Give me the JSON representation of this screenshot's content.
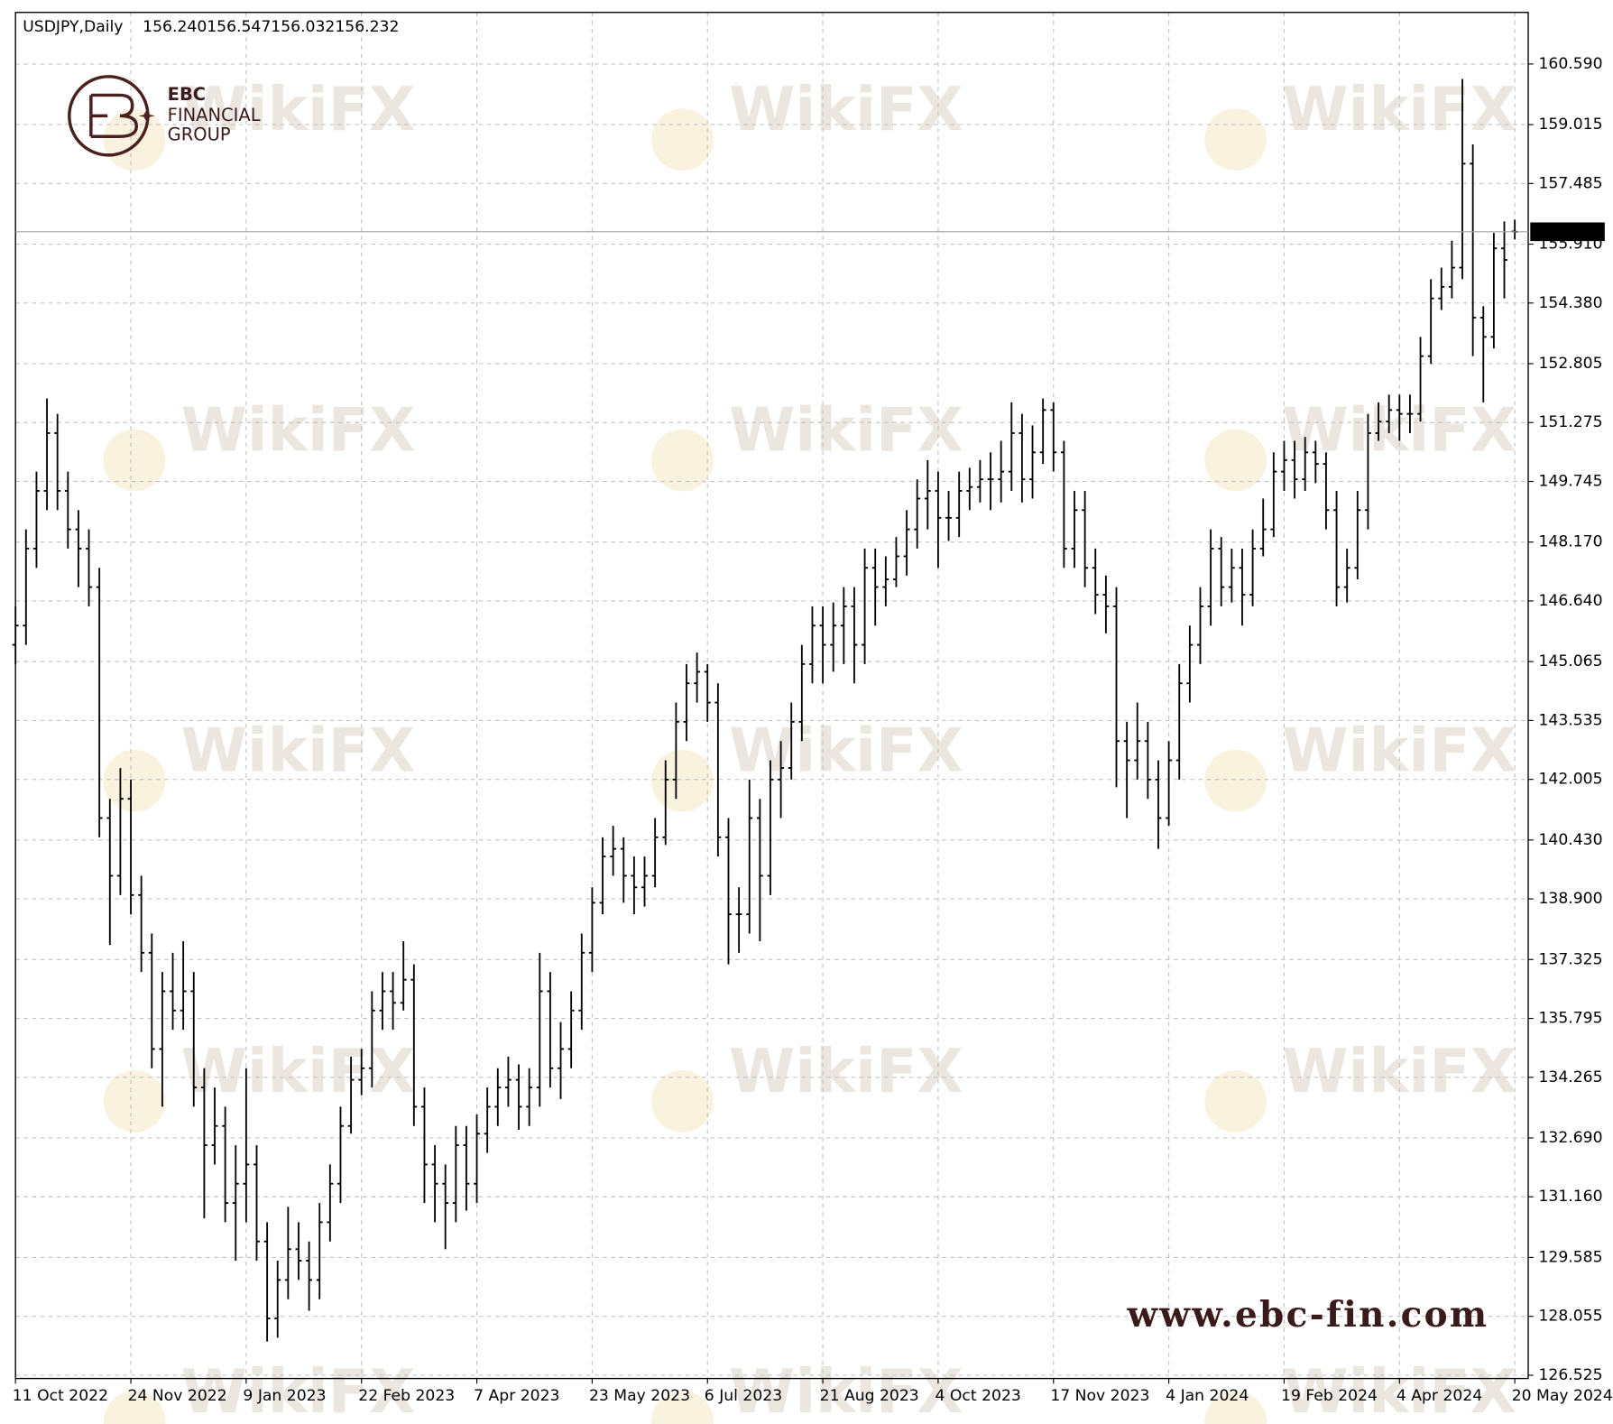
{
  "chart_data": {
    "type": "ohlc",
    "symbol": "USDJPY,Daily",
    "header_labels": [
      "156.240",
      "156.547",
      "156.032",
      "156.232"
    ],
    "color": "#000000",
    "grid": true,
    "categories": [
      "11 Oct 2022",
      null,
      null,
      null,
      null,
      null,
      null,
      null,
      null,
      null,
      null,
      "24 Nov 2022",
      null,
      null,
      null,
      null,
      null,
      null,
      null,
      null,
      null,
      null,
      "9 Jan 2023",
      null,
      null,
      null,
      null,
      null,
      null,
      null,
      null,
      null,
      null,
      "22 Feb 2023",
      null,
      null,
      null,
      null,
      null,
      null,
      null,
      null,
      null,
      null,
      "7 Apr 2023",
      null,
      null,
      null,
      null,
      null,
      null,
      null,
      null,
      null,
      null,
      "23 May 2023",
      null,
      null,
      null,
      null,
      null,
      null,
      null,
      null,
      null,
      null,
      "6 Jul 2023",
      null,
      null,
      null,
      null,
      null,
      null,
      null,
      null,
      null,
      null,
      "21 Aug 2023",
      null,
      null,
      null,
      null,
      null,
      null,
      null,
      null,
      null,
      null,
      "4 Oct 2023",
      null,
      null,
      null,
      null,
      null,
      null,
      null,
      null,
      null,
      null,
      "17 Nov 2023",
      null,
      null,
      null,
      null,
      null,
      null,
      null,
      null,
      null,
      null,
      "4 Jan 2024",
      null,
      null,
      null,
      null,
      null,
      null,
      null,
      null,
      null,
      null,
      "19 Feb 2024",
      null,
      null,
      null,
      null,
      null,
      null,
      null,
      null,
      null,
      null,
      "4 Apr 2024",
      null,
      null,
      null,
      null,
      null,
      null,
      null,
      null,
      null,
      null,
      "20 May 2024"
    ],
    "open": [
      145.5,
      146.0,
      148.0,
      149.5,
      151.0,
      149.5,
      148.5,
      148.0,
      147.0,
      141.0,
      139.5,
      141.5,
      139.0,
      137.5,
      135.0,
      136.5,
      136.0,
      136.5,
      134.0,
      132.5,
      133.0,
      131.0,
      131.5,
      132.0,
      130.0,
      128.0,
      129.0,
      129.8,
      129.5,
      129.0,
      130.5,
      131.5,
      133.0,
      134.2,
      134.5,
      136.0,
      136.5,
      136.2,
      136.8,
      133.5,
      132.0,
      131.5,
      131.0,
      132.5,
      131.5,
      132.8,
      133.5,
      134.0,
      134.2,
      133.5,
      134.0,
      136.5,
      134.5,
      135.0,
      136.0,
      137.5,
      138.8,
      140.0,
      140.2,
      139.5,
      139.2,
      139.5,
      140.5,
      142.0,
      143.5,
      144.5,
      144.8,
      144.0,
      140.5,
      138.5,
      138.5,
      141.0,
      139.5,
      142.0,
      142.3,
      143.5,
      145.0,
      146.0,
      145.5,
      146.0,
      146.5,
      145.5,
      147.5,
      147.0,
      147.2,
      147.8,
      148.5,
      149.3,
      149.5,
      148.8,
      148.8,
      149.5,
      149.6,
      149.8,
      149.8,
      150.0,
      151.0,
      149.8,
      150.5,
      151.6,
      150.5,
      148.0,
      149.0,
      147.5,
      146.8,
      146.5,
      143.0,
      142.5,
      143.0,
      142.0,
      141.0,
      142.5,
      144.5,
      145.5,
      146.5,
      148.0,
      147.0,
      147.5,
      146.8,
      148.0,
      148.5,
      150.0,
      150.3,
      149.8,
      150.5,
      150.2,
      149.0,
      147.0,
      147.5,
      149.0,
      151.0,
      151.3,
      151.6,
      151.5,
      151.5,
      153.0,
      154.5,
      154.8,
      155.3,
      158.0,
      154.0,
      153.5,
      155.8,
      156.24
    ],
    "high": [
      146.5,
      148.5,
      150.0,
      151.9,
      151.5,
      150.0,
      149.0,
      148.5,
      147.5,
      141.5,
      142.3,
      142.0,
      139.5,
      138.0,
      137.0,
      137.5,
      137.8,
      137.0,
      134.5,
      134.0,
      133.5,
      132.5,
      134.5,
      132.5,
      130.5,
      129.5,
      130.9,
      130.5,
      130.0,
      131.0,
      132.0,
      133.5,
      134.8,
      135.0,
      136.5,
      137.0,
      137.0,
      137.8,
      137.2,
      134.0,
      132.5,
      132.0,
      133.0,
      133.0,
      133.3,
      134.0,
      134.5,
      134.8,
      134.6,
      134.5,
      137.5,
      137.0,
      135.7,
      136.5,
      138.0,
      139.2,
      140.5,
      140.8,
      140.5,
      140.0,
      140.0,
      141.0,
      142.5,
      144.0,
      145.0,
      145.3,
      145.0,
      144.5,
      141.0,
      139.2,
      142.0,
      141.5,
      142.5,
      143.0,
      144.0,
      145.5,
      146.5,
      146.5,
      146.6,
      147.0,
      147.0,
      148.0,
      148.0,
      147.8,
      148.3,
      149.0,
      149.8,
      150.3,
      150.0,
      149.5,
      150.0,
      150.1,
      150.3,
      150.5,
      150.8,
      151.8,
      151.5,
      151.2,
      151.9,
      151.8,
      150.8,
      149.5,
      149.5,
      148.0,
      147.3,
      147.0,
      143.5,
      144.0,
      143.5,
      142.5,
      143.0,
      145.0,
      146.0,
      147.0,
      148.5,
      148.3,
      148.0,
      148.0,
      148.5,
      149.3,
      150.5,
      150.8,
      150.8,
      150.9,
      150.8,
      150.5,
      149.5,
      148.0,
      149.5,
      151.5,
      151.8,
      152.0,
      152.0,
      152.0,
      153.5,
      155.0,
      155.3,
      156.0,
      160.2,
      158.5,
      154.3,
      156.2,
      156.5,
      156.547
    ],
    "low": [
      145.0,
      145.5,
      147.5,
      149.0,
      149.0,
      148.0,
      147.0,
      146.5,
      140.5,
      137.7,
      139.0,
      138.5,
      137.0,
      134.5,
      133.5,
      135.5,
      135.5,
      133.5,
      130.6,
      132.0,
      130.5,
      129.5,
      130.5,
      129.5,
      127.4,
      127.5,
      128.5,
      129.0,
      128.2,
      128.5,
      130.0,
      131.0,
      132.8,
      133.8,
      134.0,
      135.5,
      135.5,
      136.0,
      133.0,
      131.0,
      130.5,
      129.8,
      130.5,
      130.8,
      131.0,
      132.3,
      133.0,
      133.5,
      132.9,
      133.0,
      133.5,
      134.0,
      133.7,
      134.5,
      135.5,
      137.0,
      138.5,
      139.5,
      138.8,
      138.5,
      138.7,
      139.2,
      140.3,
      141.5,
      143.0,
      144.0,
      143.5,
      140.0,
      137.2,
      137.5,
      138.0,
      137.8,
      139.0,
      141.0,
      142.0,
      143.0,
      144.5,
      144.5,
      144.8,
      145.0,
      144.5,
      145.0,
      146.0,
      146.5,
      147.0,
      147.3,
      148.0,
      148.5,
      147.5,
      148.2,
      148.3,
      149.0,
      149.2,
      149.0,
      149.2,
      149.5,
      149.2,
      149.3,
      150.2,
      150.0,
      147.5,
      147.5,
      147.0,
      146.3,
      145.8,
      141.8,
      141.0,
      142.0,
      141.5,
      140.2,
      140.8,
      142.0,
      144.0,
      145.0,
      146.0,
      146.5,
      146.6,
      146.0,
      146.5,
      147.8,
      148.3,
      149.5,
      149.3,
      149.5,
      149.7,
      148.5,
      146.5,
      146.6,
      147.2,
      148.5,
      150.8,
      151.0,
      150.8,
      151.0,
      151.3,
      152.8,
      154.2,
      154.5,
      155.0,
      153.0,
      151.8,
      153.2,
      154.5,
      156.032
    ],
    "close": [
      146.0,
      148.0,
      149.5,
      151.0,
      149.5,
      148.5,
      148.0,
      147.0,
      141.0,
      139.5,
      141.5,
      139.0,
      137.5,
      135.0,
      136.5,
      136.0,
      136.5,
      134.0,
      132.5,
      133.0,
      131.0,
      131.5,
      132.0,
      130.0,
      128.0,
      129.0,
      129.8,
      129.5,
      129.0,
      130.5,
      131.5,
      133.0,
      134.2,
      134.5,
      136.0,
      136.5,
      136.2,
      136.8,
      133.5,
      132.0,
      131.5,
      131.0,
      132.5,
      131.5,
      132.8,
      133.5,
      134.0,
      134.2,
      133.5,
      134.0,
      136.5,
      134.5,
      135.0,
      136.0,
      137.5,
      138.8,
      140.0,
      140.2,
      139.5,
      139.2,
      139.5,
      140.5,
      142.0,
      143.5,
      144.5,
      144.8,
      144.0,
      140.5,
      138.5,
      138.5,
      141.0,
      139.5,
      142.0,
      142.3,
      143.5,
      145.0,
      146.0,
      145.5,
      146.0,
      146.5,
      145.5,
      147.5,
      147.0,
      147.2,
      147.8,
      148.5,
      149.3,
      149.5,
      148.8,
      148.8,
      149.5,
      149.6,
      149.8,
      149.8,
      150.0,
      151.0,
      149.8,
      150.5,
      151.6,
      150.5,
      148.0,
      149.0,
      147.5,
      146.8,
      146.5,
      143.0,
      142.5,
      143.0,
      142.0,
      141.0,
      142.5,
      144.5,
      145.5,
      146.5,
      148.0,
      147.0,
      147.5,
      146.8,
      148.0,
      148.5,
      150.0,
      150.3,
      149.8,
      150.5,
      150.2,
      149.0,
      147.0,
      147.5,
      149.0,
      151.0,
      151.3,
      151.6,
      151.5,
      151.5,
      153.0,
      154.5,
      154.8,
      155.3,
      158.0,
      154.0,
      153.5,
      155.8,
      155.5,
      156.232
    ],
    "ylim": [
      126.44,
      161.93
    ],
    "yticks": [
      {
        "value": 160.59,
        "label": "160.590"
      },
      {
        "value": 159.015,
        "label": "159.015"
      },
      {
        "value": 157.485,
        "label": "157.485"
      },
      {
        "value": 155.91,
        "label": "155.910"
      },
      {
        "value": 154.38,
        "label": "154.380"
      },
      {
        "value": 152.805,
        "label": "152.805"
      },
      {
        "value": 151.275,
        "label": "151.275"
      },
      {
        "value": 149.745,
        "label": "149.745"
      },
      {
        "value": 148.17,
        "label": "148.170"
      },
      {
        "value": 146.64,
        "label": "146.640"
      },
      {
        "value": 145.065,
        "label": "145.065"
      },
      {
        "value": 143.535,
        "label": "143.535"
      },
      {
        "value": 142.005,
        "label": "142.005"
      },
      {
        "value": 140.43,
        "label": "140.430"
      },
      {
        "value": 138.9,
        "label": "138.900"
      },
      {
        "value": 137.325,
        "label": "137.325"
      },
      {
        "value": 135.795,
        "label": "135.795"
      },
      {
        "value": 134.265,
        "label": "134.265"
      },
      {
        "value": 132.69,
        "label": "132.690"
      },
      {
        "value": 131.16,
        "label": "131.160"
      },
      {
        "value": 129.585,
        "label": "129.585"
      },
      {
        "value": 128.055,
        "label": "128.055"
      },
      {
        "value": 126.525,
        "label": "126.525"
      }
    ]
  },
  "branding": {
    "logo_line1": "EBC",
    "logo_line2": "FINANCIAL",
    "logo_line3": "GROUP",
    "watermark": "WikiFX",
    "url": "www.ebc-fin.com"
  }
}
